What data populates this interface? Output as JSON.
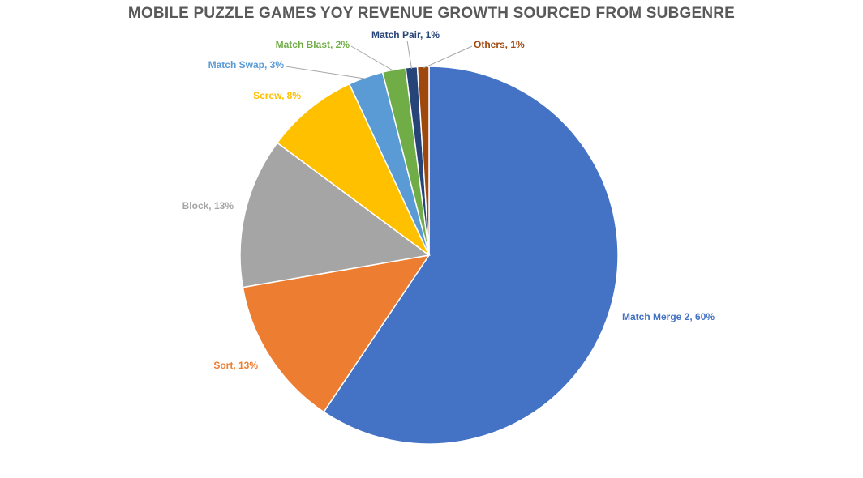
{
  "chart_data": {
    "type": "pie",
    "title": "MOBILE PUZZLE GAMES YOY REVENUE GROWTH SOURCED FROM SUBGENRE",
    "categories": [
      "Match Merge 2",
      "Sort",
      "Block",
      "Screw",
      "Match Swap",
      "Match Blast",
      "Match Pair",
      "Others"
    ],
    "values": [
      60,
      13,
      13,
      8,
      3,
      2,
      1,
      1
    ],
    "labels": [
      "Match Merge 2, 60%",
      "Sort, 13%",
      "Block, 13%",
      "Screw, 8%",
      "Match Swap, 3%",
      "Match Blast, 2%",
      "Match Pair, 1%",
      "Others, 1%"
    ],
    "colors": [
      "#4472C4",
      "#ED7D31",
      "#A5A5A5",
      "#FFC000",
      "#5B9BD5",
      "#70AD47",
      "#264478",
      "#9E480E"
    ],
    "start_angle": "top",
    "direction": "clockwise",
    "legend": "none"
  }
}
